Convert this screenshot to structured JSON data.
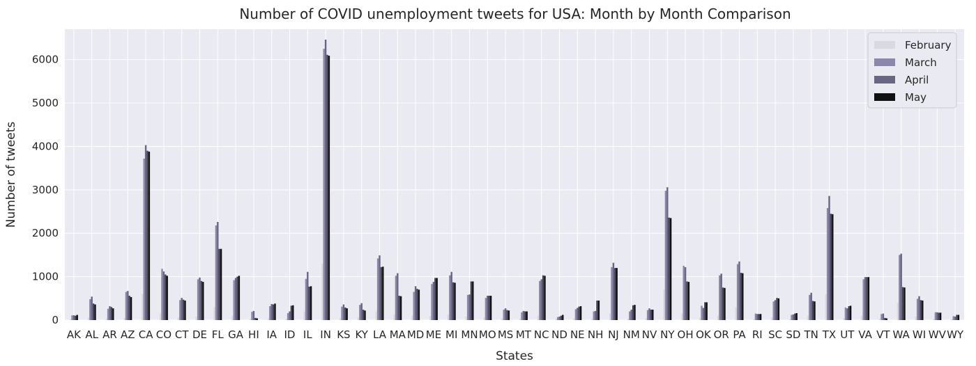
{
  "chart_data": {
    "type": "bar",
    "title": "Number of COVID unemployment tweets for USA: Month by Month Comparison",
    "xlabel": "States",
    "ylabel": "Number of tweets",
    "ylim": [
      0,
      6700
    ],
    "yticks": [
      0,
      1000,
      2000,
      3000,
      4000,
      5000,
      6000
    ],
    "grid": true,
    "legend_position": "top-right",
    "categories": [
      "AK",
      "AL",
      "AR",
      "AZ",
      "CA",
      "CO",
      "CT",
      "DE",
      "FL",
      "GA",
      "HI",
      "IA",
      "ID",
      "IL",
      "IN",
      "KS",
      "KY",
      "LA",
      "MA",
      "MD",
      "ME",
      "MI",
      "MN",
      "MO",
      "MS",
      "MT",
      "NC",
      "ND",
      "NE",
      "NH",
      "NJ",
      "NM",
      "NV",
      "NY",
      "OH",
      "OK",
      "OR",
      "PA",
      "RI",
      "SC",
      "SD",
      "TN",
      "TX",
      "UT",
      "VA",
      "VT",
      "WA",
      "WI",
      "WV",
      "WY"
    ],
    "series": [
      {
        "name": "February",
        "color": "#d9d9df",
        "values": [
          20,
          60,
          40,
          50,
          600,
          150,
          60,
          80,
          300,
          100,
          30,
          40,
          30,
          200,
          1300,
          50,
          60,
          200,
          120,
          100,
          90,
          130,
          80,
          70,
          40,
          30,
          100,
          20,
          40,
          30,
          150,
          30,
          40,
          700,
          150,
          50,
          100,
          300,
          20,
          60,
          20,
          100,
          600,
          50,
          100,
          30,
          400,
          80,
          30,
          20
        ]
      },
      {
        "name": "March",
        "color": "#8b87ab",
        "values": [
          110,
          480,
          260,
          650,
          3720,
          1180,
          460,
          940,
          2180,
          920,
          190,
          320,
          160,
          950,
          6250,
          310,
          350,
          1420,
          1020,
          650,
          830,
          1030,
          580,
          510,
          240,
          180,
          900,
          70,
          250,
          200,
          1220,
          200,
          230,
          2980,
          1250,
          330,
          1030,
          1290,
          150,
          430,
          120,
          580,
          2580,
          290,
          940,
          140,
          1500,
          490,
          180,
          90
        ]
      },
      {
        "name": "April",
        "color": "#6a6582",
        "values": [
          110,
          540,
          320,
          670,
          4030,
          1120,
          510,
          980,
          2260,
          970,
          210,
          370,
          200,
          1110,
          6460,
          360,
          390,
          1490,
          1080,
          780,
          880,
          1110,
          590,
          560,
          270,
          210,
          940,
          80,
          280,
          210,
          1320,
          240,
          270,
          3060,
          1220,
          280,
          1070,
          1350,
          140,
          460,
          130,
          630,
          2860,
          270,
          990,
          150,
          1530,
          550,
          180,
          80
        ]
      },
      {
        "name": "April",
        "color": "#454254",
        "values": [
          100,
          380,
          300,
          560,
          3900,
          1050,
          470,
          900,
          1640,
          1000,
          50,
          360,
          330,
          770,
          6110,
          290,
          240,
          1220,
          560,
          720,
          970,
          870,
          890,
          560,
          230,
          200,
          1030,
          100,
          310,
          450,
          1200,
          340,
          240,
          2360,
          890,
          410,
          750,
          1090,
          140,
          510,
          150,
          440,
          2450,
          320,
          990,
          50,
          760,
          460,
          170,
          120
        ]
      },
      {
        "name": "May",
        "color": "#111111",
        "values": [
          120,
          360,
          270,
          530,
          3880,
          1020,
          450,
          880,
          1640,
          1020,
          40,
          380,
          340,
          780,
          6090,
          270,
          220,
          1230,
          550,
          700,
          970,
          860,
          890,
          560,
          220,
          200,
          1020,
          120,
          320,
          450,
          1200,
          350,
          240,
          2350,
          880,
          410,
          740,
          1080,
          140,
          500,
          160,
          430,
          2440,
          330,
          990,
          40,
          750,
          450,
          170,
          120
        ]
      }
    ]
  }
}
